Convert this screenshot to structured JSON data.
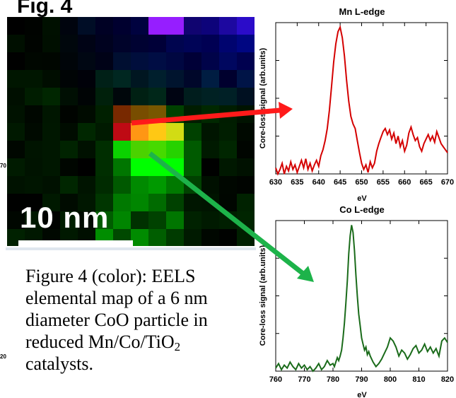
{
  "figure": {
    "label": "Fig. 4",
    "cut_ticks": [
      "70",
      "20"
    ],
    "scale_bar_label": "10 nm",
    "caption": {
      "text_before_sub": "Figure 4 (color): EELS elemental map of a 6 nm diameter CoO particle in reduced Mn/Co/TiO",
      "subscript": "2",
      "text_after_sub": " catalysts."
    }
  },
  "colors": {
    "mn_series": "#d40000",
    "co_series": "#1a6b1a",
    "red_arrow": "#ff1a1a",
    "green_arrow": "#1db34a"
  },
  "chart_data": [
    {
      "type": "line",
      "title": "Mn L-edge",
      "xlabel": "eV",
      "ylabel": "Core-loss signal (arb.units)",
      "xlim": [
        630,
        670
      ],
      "xticks": [
        630,
        635,
        640,
        645,
        650,
        655,
        660,
        665,
        670
      ],
      "grid": false,
      "series": [
        {
          "color": "#d40000",
          "x": [
            630,
            630.5,
            631,
            631.5,
            632,
            632.5,
            633,
            633.5,
            634,
            634.5,
            635,
            635.5,
            636,
            636.5,
            637,
            637.5,
            638,
            638.5,
            639,
            639.5,
            640,
            640.5,
            641,
            641.5,
            642,
            642.5,
            643,
            643.5,
            644,
            644.5,
            645,
            645.5,
            646,
            646.5,
            647,
            647.5,
            648,
            648.5,
            649,
            649.5,
            650,
            650.5,
            651,
            651.5,
            652,
            652.5,
            653,
            653.5,
            654,
            654.5,
            655,
            655.5,
            656,
            656.5,
            657,
            657.5,
            658,
            658.5,
            659,
            659.5,
            660,
            660.5,
            661,
            661.5,
            662,
            662.5,
            663,
            663.5,
            664,
            664.5,
            665,
            665.5,
            666,
            666.5,
            667,
            667.5,
            668,
            668.5,
            669,
            669.5,
            670
          ],
          "y": [
            0.04,
            0.0,
            0.03,
            0.07,
            0.0,
            0.05,
            0.02,
            0.08,
            0.03,
            0.06,
            0.01,
            0.05,
            0.09,
            0.04,
            0.1,
            0.03,
            0.07,
            0.02,
            0.06,
            0.09,
            0.05,
            0.12,
            0.16,
            0.22,
            0.3,
            0.42,
            0.58,
            0.74,
            0.86,
            0.94,
            0.97,
            0.9,
            0.78,
            0.62,
            0.48,
            0.38,
            0.33,
            0.3,
            0.22,
            0.14,
            0.07,
            0.03,
            0.06,
            0.01,
            0.08,
            0.04,
            0.07,
            0.15,
            0.2,
            0.24,
            0.28,
            0.3,
            0.26,
            0.29,
            0.23,
            0.27,
            0.2,
            0.25,
            0.18,
            0.22,
            0.15,
            0.19,
            0.27,
            0.31,
            0.26,
            0.22,
            0.24,
            0.18,
            0.15,
            0.2,
            0.23,
            0.26,
            0.22,
            0.25,
            0.21,
            0.28,
            0.24,
            0.2,
            0.18,
            0.16,
            0.14
          ]
        }
      ]
    },
    {
      "type": "line",
      "title": "Co L-edge",
      "xlabel": "eV",
      "ylabel": "Core-loss signal (arb.units)",
      "xlim": [
        760,
        820
      ],
      "xticks": [
        760,
        770,
        780,
        790,
        800,
        810,
        820
      ],
      "grid": false,
      "series": [
        {
          "color": "#1a6b1a",
          "x": [
            760,
            761,
            762,
            763,
            764,
            765,
            766,
            767,
            768,
            769,
            770,
            771,
            772,
            773,
            774,
            775,
            776,
            777,
            778,
            779,
            780,
            780.5,
            781,
            781.5,
            782,
            782.5,
            783,
            783.5,
            784,
            784.5,
            785,
            785.5,
            786,
            786.5,
            787,
            787.5,
            788,
            788.5,
            789,
            789.5,
            790,
            790.5,
            791,
            791.5,
            792,
            792.5,
            793,
            794,
            795,
            796,
            797,
            798,
            799,
            800,
            801,
            802,
            803,
            804,
            805,
            806,
            807,
            808,
            809,
            810,
            811,
            812,
            813,
            814,
            815,
            816,
            817,
            818,
            819,
            820
          ],
          "y": [
            0.02,
            0.05,
            0.01,
            0.04,
            0.02,
            0.06,
            0.03,
            0.01,
            0.05,
            0.02,
            0.04,
            0.01,
            0.03,
            0.0,
            0.02,
            0.05,
            0.01,
            0.03,
            0.07,
            0.04,
            0.05,
            0.03,
            0.06,
            0.09,
            0.07,
            0.1,
            0.14,
            0.22,
            0.32,
            0.45,
            0.6,
            0.78,
            0.9,
            0.97,
            0.92,
            0.8,
            0.64,
            0.5,
            0.38,
            0.3,
            0.22,
            0.18,
            0.14,
            0.16,
            0.11,
            0.13,
            0.1,
            0.06,
            0.03,
            0.05,
            0.08,
            0.12,
            0.16,
            0.22,
            0.2,
            0.16,
            0.1,
            0.14,
            0.12,
            0.08,
            0.11,
            0.15,
            0.17,
            0.12,
            0.14,
            0.18,
            0.13,
            0.16,
            0.12,
            0.15,
            0.1,
            0.2,
            0.22,
            0.19
          ]
        }
      ]
    }
  ]
}
